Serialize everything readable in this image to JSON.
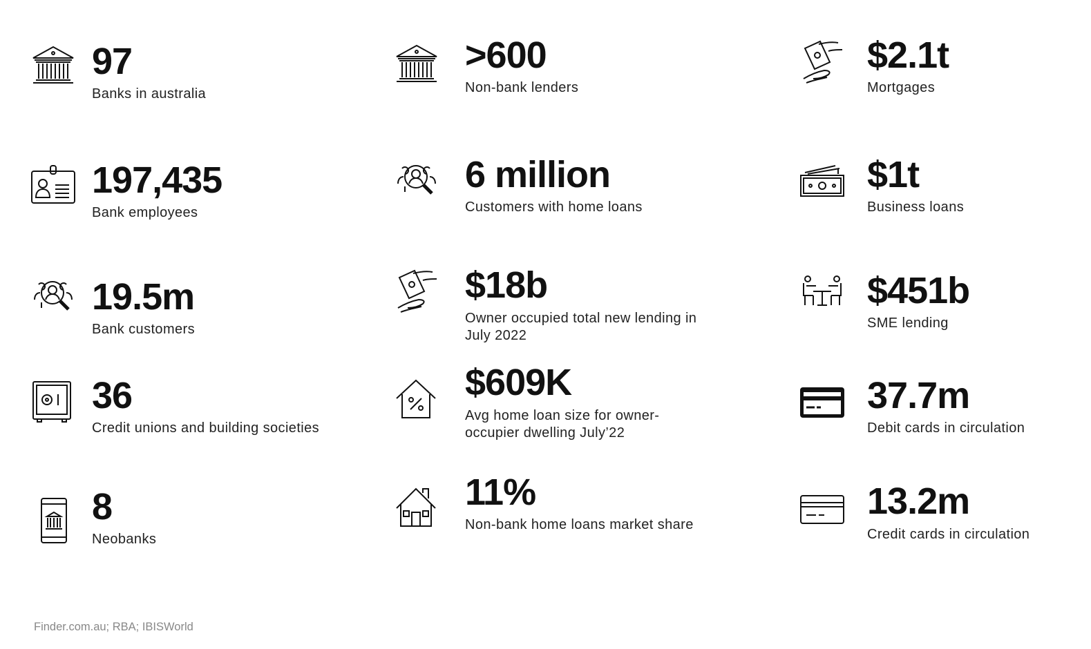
{
  "stats": [
    {
      "value": "97",
      "label": "Banks in australia",
      "icon": "bank-icon"
    },
    {
      "value": "197,435",
      "label": "Bank employees",
      "icon": "id-badge-icon"
    },
    {
      "value": "19.5m",
      "label": "Bank customers",
      "icon": "customer-search-icon"
    },
    {
      "value": "36",
      "label": "Credit unions and building societies",
      "icon": "safe-icon"
    },
    {
      "value": "8",
      "label": "Neobanks",
      "icon": "mobile-bank-icon"
    },
    {
      "value": ">600",
      "label": "Non-bank lenders",
      "icon": "bank-icon"
    },
    {
      "value": "6 million",
      "label": "Customers with home loans",
      "icon": "customer-search-icon"
    },
    {
      "value": "$18b",
      "label": "Owner occupied total new lending in July 2022",
      "icon": "money-hand-icon"
    },
    {
      "value": "$609K",
      "label": "Avg home loan size for owner-occupier dwelling July’22",
      "icon": "house-percent-icon"
    },
    {
      "value": "11%",
      "label": "Non-bank home loans market share",
      "icon": "house-icon"
    },
    {
      "value": "$2.1t",
      "label": "Mortgages",
      "icon": "money-hand-icon"
    },
    {
      "value": "$1t",
      "label": "Business loans",
      "icon": "cash-icon"
    },
    {
      "value": "$451b",
      "label": "SME lending",
      "icon": "meeting-icon"
    },
    {
      "value": "37.7m",
      "label": "Debit cards in circulation",
      "icon": "debit-card-icon"
    },
    {
      "value": "13.2m",
      "label": "Credit cards in circulation",
      "icon": "credit-card-icon"
    }
  ],
  "source": "Finder.com.au; RBA; IBISWorld"
}
